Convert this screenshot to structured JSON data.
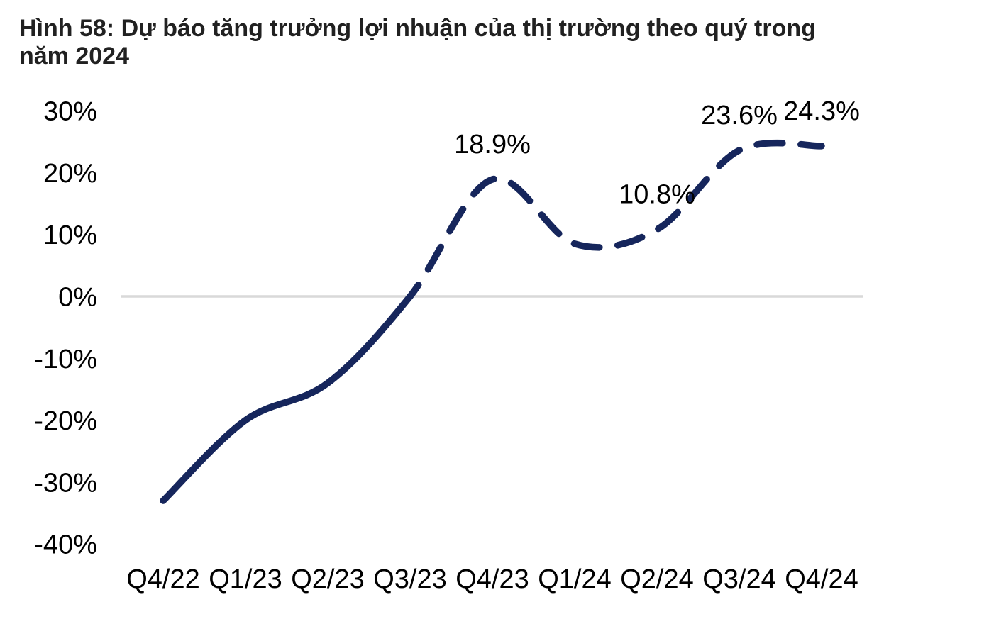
{
  "figure": {
    "title_line1": "Hình 58: Dự báo tăng trưởng lợi nhuận của thị trường theo quý trong",
    "title_line2": "năm 2024"
  },
  "chart_data": {
    "type": "line",
    "title": "Hình 58: Dự báo tăng trưởng lợi nhuận của thị trường theo quý trong năm 2024",
    "categories": [
      "Q4/22",
      "Q1/23",
      "Q2/23",
      "Q3/23",
      "Q4/23",
      "Q1/24",
      "Q2/24",
      "Q3/24",
      "Q4/24"
    ],
    "values": [
      -33,
      -20,
      -14,
      0,
      18.9,
      8.5,
      10.8,
      23.6,
      24.3
    ],
    "data_labels": [
      "",
      "",
      "",
      "",
      "18.9%",
      "",
      "10.8%",
      "23.6%",
      "24.3%"
    ],
    "solid_until_index": 3,
    "line_segments": {
      "actual": "Q4/22 to Q3/23 (solid)",
      "forecast": "Q3/23 to Q4/24 (dashed)"
    },
    "yticks": {
      "values": [
        30,
        20,
        10,
        0,
        -10,
        -20,
        -30,
        -40
      ],
      "labels": [
        "30%",
        "20%",
        "10%",
        "0%",
        "-10%",
        "-20%",
        "-30%",
        "-40%"
      ]
    },
    "ylim": [
      -40,
      30
    ],
    "xlabel": "",
    "ylabel": "",
    "legend": "none",
    "grid": "horizontal gridline at 0% only",
    "colors": {
      "line": "#16265C",
      "gridline": "#D9D9D9",
      "title_text": "#212121",
      "axis_text": "#000000",
      "background": "#FFFFFF"
    }
  }
}
